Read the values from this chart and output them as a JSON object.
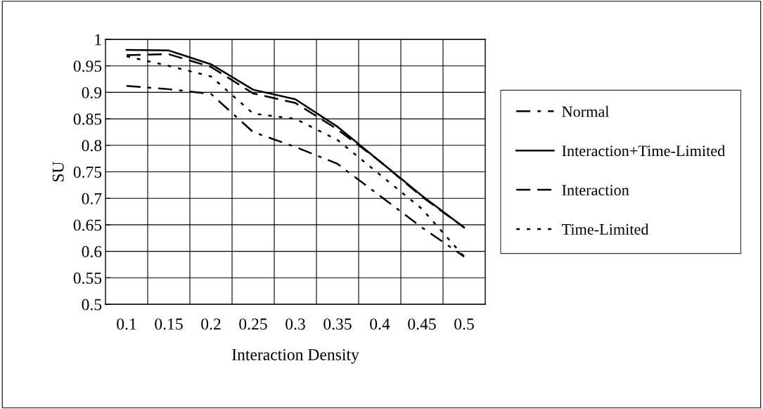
{
  "chart_data": {
    "type": "line",
    "xlabel": "Interaction Density",
    "ylabel": "SU",
    "categories": [
      "0.1",
      "0.15",
      "0.2",
      "0.25",
      "0.3",
      "0.35",
      "0.4",
      "0.45",
      "0.5"
    ],
    "series": [
      {
        "name": "Normal",
        "color": "#000000",
        "line_style": "dashdot",
        "values": [
          0.912,
          0.906,
          0.897,
          0.825,
          0.797,
          0.765,
          0.705,
          0.645,
          0.59
        ]
      },
      {
        "name": "Interaction+Time-Limited",
        "color": "#000000",
        "line_style": "solid",
        "values": [
          0.98,
          0.979,
          0.953,
          0.905,
          0.887,
          0.835,
          0.77,
          0.705,
          0.645
        ]
      },
      {
        "name": "Interaction",
        "color": "#000000",
        "line_style": "dashed",
        "values": [
          0.97,
          0.972,
          0.948,
          0.898,
          0.88,
          0.83,
          0.77,
          0.703,
          0.645
        ]
      },
      {
        "name": "Time-Limited",
        "color": "#000000",
        "line_style": "dotted",
        "values": [
          0.968,
          0.95,
          0.93,
          0.86,
          0.85,
          0.81,
          0.745,
          0.68,
          0.59
        ]
      }
    ],
    "ylim": [
      0.5,
      1
    ],
    "yticks": [
      0.5,
      0.55,
      0.6,
      0.65,
      0.7,
      0.75,
      0.8,
      0.85,
      0.9,
      0.95,
      1
    ],
    "grid": true,
    "legend": "right",
    "marker": "none"
  }
}
